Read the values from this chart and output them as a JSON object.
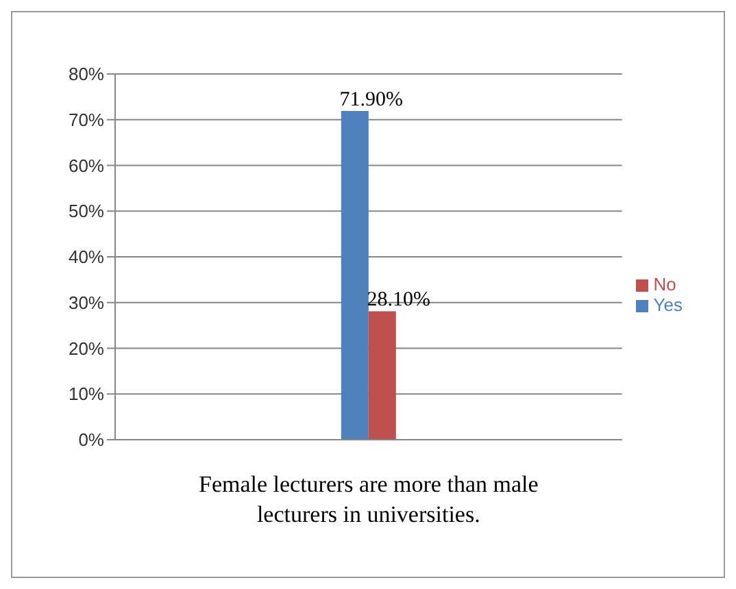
{
  "chart_data": {
    "type": "bar",
    "categories": [
      "Female lecturers are more than male lecturers in universities."
    ],
    "series": [
      {
        "name": "Yes",
        "color": "#4f81bd",
        "values": [
          71.9
        ],
        "value_labels": [
          "71.90%"
        ]
      },
      {
        "name": "No",
        "color": "#c0504d",
        "values": [
          28.1
        ],
        "value_labels": [
          "28.10%"
        ]
      }
    ],
    "ylim": [
      0,
      80
    ],
    "yticks": [
      {
        "value": 0,
        "label": "0%"
      },
      {
        "value": 10,
        "label": "10%"
      },
      {
        "value": 20,
        "label": "20%"
      },
      {
        "value": 30,
        "label": "30%"
      },
      {
        "value": 40,
        "label": "40%"
      },
      {
        "value": 50,
        "label": "50%"
      },
      {
        "value": 60,
        "label": "60%"
      },
      {
        "value": 70,
        "label": "70%"
      },
      {
        "value": 80,
        "label": "80%"
      }
    ],
    "grid": "y",
    "legend": "right"
  }
}
